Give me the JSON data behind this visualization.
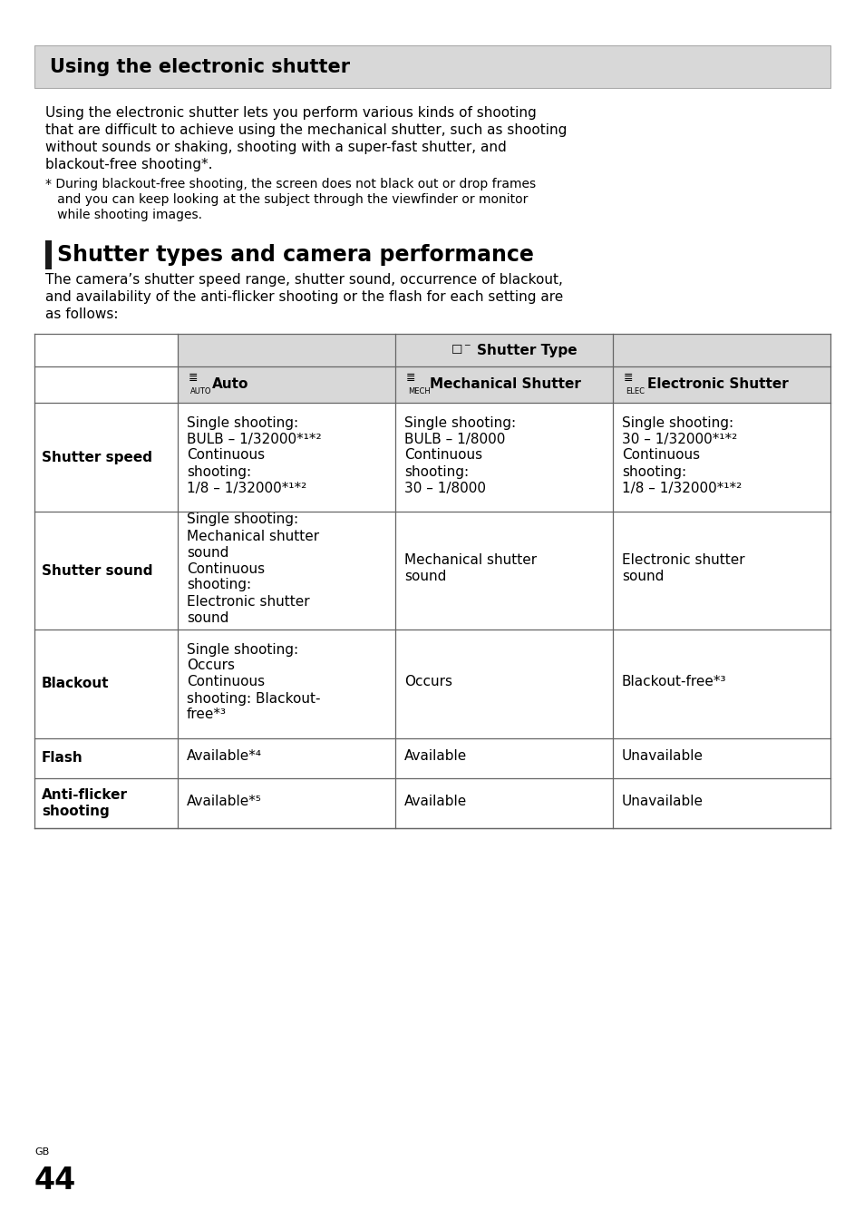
{
  "page_bg": "#ffffff",
  "header_bg": "#d8d8d8",
  "header_title": "Using the electronic shutter",
  "body_text_lines": [
    "Using the electronic shutter lets you perform various kinds of shooting",
    "that are difficult to achieve using the mechanical shutter, such as shooting",
    "without sounds or shaking, shooting with a super-fast shutter, and",
    "blackout-free shooting*."
  ],
  "footnote_lines": [
    "* During blackout-free shooting, the screen does not black out or drop frames",
    "   and you can keep looking at the subject through the viewfinder or monitor",
    "   while shooting images."
  ],
  "section_title": "Shutter types and camera performance",
  "section_body_lines": [
    "The camera’s shutter speed range, shutter sound, occurrence of blackout,",
    "and availability of the anti-flicker shooting or the flash for each setting are",
    "as follows:"
  ],
  "table_header_label": "Shutter Type",
  "col_headers": [
    "Auto",
    "Mechanical Shutter",
    "Electronic Shutter"
  ],
  "col_sublabels": [
    "AUTO",
    "MECH",
    "ELEC"
  ],
  "row_labels": [
    "Shutter speed",
    "Shutter sound",
    "Blackout",
    "Flash",
    "Anti-flicker\nshooting"
  ],
  "cell_data": [
    [
      "Single shooting:\nBULB – 1/32000*¹*²\nContinuous\nshooting:\n1/8 – 1/32000*¹*²",
      "Single shooting:\nBULB – 1/8000\nContinuous\nshooting:\n30 – 1/8000",
      "Single shooting:\n30 – 1/32000*¹*²\nContinuous\nshooting:\n1/8 – 1/32000*¹*²"
    ],
    [
      "Single shooting:\nMechanical shutter\nsound\nContinuous\nshooting:\nElectronic shutter\nsound",
      "Mechanical shutter\nsound",
      "Electronic shutter\nsound"
    ],
    [
      "Single shooting:\nOccurs\nContinuous\nshooting: Blackout-\nfree*³",
      "Occurs",
      "Blackout-free*³"
    ],
    [
      "Available*⁴",
      "Available",
      "Unavailable"
    ],
    [
      "Available*⁵",
      "Available",
      "Unavailable"
    ]
  ],
  "page_number": "44",
  "gb_label": "GB"
}
